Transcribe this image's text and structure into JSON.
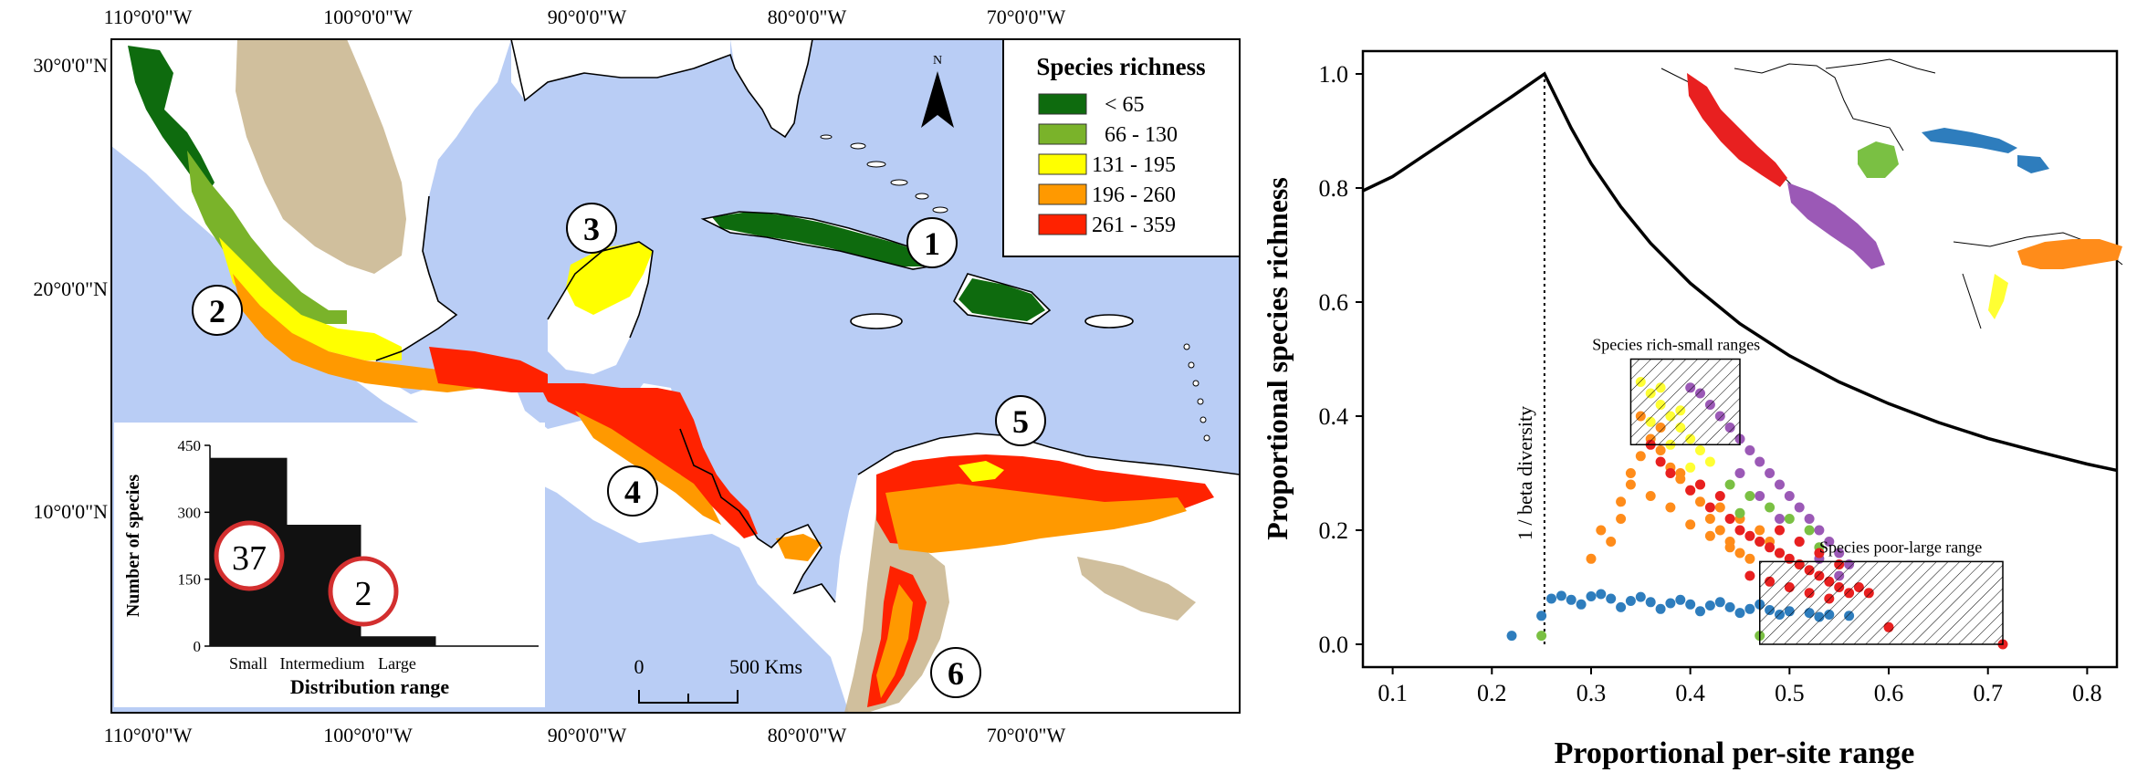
{
  "colors": {
    "ocean": "#b9cdf5",
    "land_low": "#ffffff",
    "relief": "#c8b48c",
    "relief_dark": "#9c8a68",
    "legend_class_1": "#0e6b0e",
    "legend_class_2": "#7ab32a",
    "legend_class_3": "#ffff00",
    "legend_class_4": "#ff9900",
    "legend_class_5": "#ff2200",
    "region_mexico_pacific": "#e82020",
    "region_central_america": "#9b59b6",
    "region_yucatan": "#7ac043",
    "region_antilles": "#2e7dbd",
    "region_venezuela": "#ff8c1a",
    "region_colombia_andes": "#ffff33",
    "bars": "#111111",
    "circle_stroke": "#d32f2f"
  },
  "map": {
    "lon_labels_top": [
      "110°0'0\"W",
      "100°0'0\"W",
      "90°0'0\"W",
      "80°0'0\"W",
      "70°0'0\"W"
    ],
    "lon_labels_bottom": [
      "110°0'0\"W",
      "100°0'0\"W",
      "90°0'0\"W",
      "80°0'0\"W",
      "70°0'0\"W"
    ],
    "lat_labels": [
      "30°0'0\"N",
      "20°0'0\"N",
      "10°0'0\"N"
    ],
    "north_label": "N",
    "legend": {
      "title": "Species richness",
      "classes": [
        "< 65",
        "66 - 130",
        "131 - 195",
        "196 - 260",
        "261 - 359"
      ]
    },
    "region_numbers": [
      "1",
      "2",
      "3",
      "4",
      "5",
      "6"
    ],
    "scale": {
      "zero": "0",
      "distance": "500 Kms"
    }
  },
  "inset_bar": {
    "ylabel": "Number of species",
    "xlabel": "Distribution range",
    "y_ticks": [
      "450",
      "300",
      "150",
      "0"
    ],
    "categories": [
      "Small",
      "Intermedium",
      "Large"
    ],
    "values": [
      422,
      272,
      22
    ],
    "ylim": [
      0,
      450
    ],
    "circle_labels": [
      "37",
      "2"
    ]
  },
  "chart_data": [
    {
      "type": "bar",
      "title": "",
      "categories": [
        "Small",
        "Intermedium",
        "Large"
      ],
      "values": [
        422,
        272,
        22
      ],
      "xlabel": "Distribution range",
      "ylabel": "Number of species",
      "ylim": [
        0,
        450
      ],
      "annotations": [
        "37",
        "2"
      ]
    },
    {
      "type": "scatter",
      "title": "",
      "xlabel": "Proportional  per-site range",
      "ylabel": "Proportional species richness",
      "xlim": [
        0.07,
        0.83
      ],
      "ylim": [
        -0.04,
        1.04
      ],
      "x_ticks": [
        "0.1",
        "0.2",
        "0.3",
        "0.4",
        "0.5",
        "0.6",
        "0.7",
        "0.8"
      ],
      "y_ticks": [
        "0.0",
        "0.2",
        "0.4",
        "0.6",
        "0.8",
        "1.0"
      ],
      "beta_line_x": 0.253,
      "beta_label": "1 / beta diversity",
      "annotations": [
        "Species rich-small ranges",
        "Species poor-large range"
      ],
      "boxes": [
        {
          "label": "Species rich-small ranges",
          "x": [
            0.34,
            0.45
          ],
          "y": [
            0.35,
            0.5
          ]
        },
        {
          "label": "Species poor-large range",
          "x": [
            0.47,
            0.715
          ],
          "y": [
            0.0,
            0.145
          ]
        }
      ],
      "envelope": {
        "x": [
          0.07,
          0.1,
          0.13,
          0.16,
          0.19,
          0.22,
          0.253,
          0.28,
          0.3,
          0.33,
          0.36,
          0.4,
          0.45,
          0.5,
          0.55,
          0.6,
          0.65,
          0.7,
          0.75,
          0.8,
          0.83
        ],
        "y": [
          0.795,
          0.82,
          0.855,
          0.89,
          0.925,
          0.96,
          1.0,
          0.905,
          0.843,
          0.767,
          0.703,
          0.633,
          0.562,
          0.506,
          0.46,
          0.422,
          0.389,
          0.361,
          0.338,
          0.316,
          0.305
        ]
      },
      "series": [
        {
          "name": "",
          "color": "#2e7dbd",
          "x": [
            0.22,
            0.25,
            0.26,
            0.27,
            0.28,
            0.3,
            0.32,
            0.34,
            0.36,
            0.38,
            0.4,
            0.42,
            0.44,
            0.46,
            0.48,
            0.5,
            0.52,
            0.54,
            0.56,
            0.29,
            0.33,
            0.37,
            0.41,
            0.45,
            0.49,
            0.53,
            0.31,
            0.35,
            0.39,
            0.43,
            0.47
          ],
          "y": [
            0.015,
            0.05,
            0.08,
            0.085,
            0.078,
            0.084,
            0.08,
            0.076,
            0.074,
            0.072,
            0.07,
            0.068,
            0.065,
            0.062,
            0.06,
            0.058,
            0.055,
            0.052,
            0.05,
            0.07,
            0.065,
            0.062,
            0.058,
            0.055,
            0.052,
            0.048,
            0.088,
            0.083,
            0.078,
            0.074,
            0.07
          ]
        },
        {
          "name": "",
          "color": "#ff8c1a",
          "x": [
            0.3,
            0.32,
            0.33,
            0.34,
            0.35,
            0.36,
            0.37,
            0.38,
            0.39,
            0.4,
            0.41,
            0.42,
            0.43,
            0.44,
            0.45,
            0.46,
            0.36,
            0.38,
            0.4,
            0.42,
            0.44,
            0.34,
            0.33,
            0.31,
            0.35,
            0.37,
            0.39,
            0.41,
            0.43,
            0.45,
            0.47,
            0.48
          ],
          "y": [
            0.15,
            0.18,
            0.22,
            0.28,
            0.33,
            0.36,
            0.34,
            0.31,
            0.29,
            0.27,
            0.25,
            0.22,
            0.2,
            0.18,
            0.16,
            0.15,
            0.26,
            0.24,
            0.21,
            0.19,
            0.17,
            0.3,
            0.25,
            0.2,
            0.4,
            0.38,
            0.3,
            0.28,
            0.24,
            0.22,
            0.2,
            0.18
          ]
        },
        {
          "name": "",
          "color": "#ffff33",
          "x": [
            0.35,
            0.36,
            0.37,
            0.38,
            0.39,
            0.4,
            0.41,
            0.42,
            0.36,
            0.38,
            0.4,
            0.37,
            0.39
          ],
          "y": [
            0.46,
            0.44,
            0.42,
            0.4,
            0.38,
            0.36,
            0.34,
            0.32,
            0.39,
            0.35,
            0.31,
            0.45,
            0.41
          ]
        },
        {
          "name": "",
          "color": "#9b59b6",
          "x": [
            0.4,
            0.41,
            0.42,
            0.43,
            0.44,
            0.45,
            0.46,
            0.47,
            0.48,
            0.49,
            0.5,
            0.51,
            0.52,
            0.53,
            0.54,
            0.55,
            0.56,
            0.45,
            0.47,
            0.49,
            0.51,
            0.53,
            0.55
          ],
          "y": [
            0.45,
            0.44,
            0.42,
            0.4,
            0.38,
            0.36,
            0.34,
            0.32,
            0.3,
            0.28,
            0.26,
            0.24,
            0.22,
            0.2,
            0.18,
            0.16,
            0.14,
            0.3,
            0.26,
            0.22,
            0.18,
            0.15,
            0.12
          ]
        },
        {
          "name": "",
          "color": "#7ac043",
          "x": [
            0.44,
            0.46,
            0.48,
            0.5,
            0.52,
            0.47,
            0.49,
            0.51,
            0.45,
            0.53,
            0.25,
            0.47
          ],
          "y": [
            0.28,
            0.26,
            0.24,
            0.22,
            0.2,
            0.18,
            0.16,
            0.14,
            0.23,
            0.17,
            0.015,
            0.015
          ]
        },
        {
          "name": "",
          "color": "#e82020",
          "x": [
            0.36,
            0.37,
            0.38,
            0.4,
            0.42,
            0.44,
            0.45,
            0.46,
            0.47,
            0.48,
            0.49,
            0.5,
            0.51,
            0.52,
            0.53,
            0.54,
            0.55,
            0.56,
            0.57,
            0.58,
            0.46,
            0.48,
            0.5,
            0.52,
            0.54,
            0.49,
            0.51,
            0.53,
            0.55,
            0.6,
            0.715,
            0.43,
            0.41
          ],
          "y": [
            0.35,
            0.32,
            0.3,
            0.27,
            0.24,
            0.22,
            0.2,
            0.19,
            0.18,
            0.17,
            0.16,
            0.15,
            0.14,
            0.13,
            0.12,
            0.11,
            0.1,
            0.09,
            0.1,
            0.09,
            0.12,
            0.11,
            0.1,
            0.09,
            0.08,
            0.2,
            0.18,
            0.16,
            0.14,
            0.03,
            0.0,
            0.26,
            0.28
          ]
        }
      ]
    }
  ],
  "inset_map_colors": [
    "#e82020",
    "#9b59b6",
    "#7ac043",
    "#2e7dbd",
    "#ff8c1a",
    "#ffff33"
  ]
}
